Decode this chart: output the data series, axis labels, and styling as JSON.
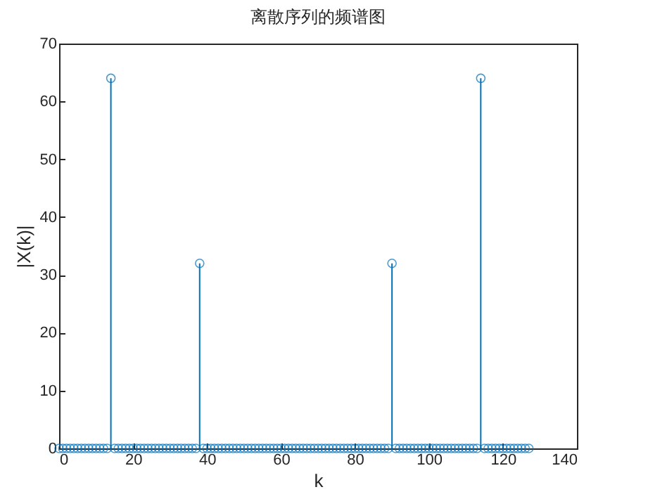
{
  "chart_data": {
    "type": "lollipop",
    "title": "离散序列的频谱图",
    "xlabel": "k",
    "ylabel": "|X(k)|",
    "x": [
      0,
      1,
      2,
      3,
      4,
      5,
      6,
      7,
      8,
      9,
      10,
      11,
      12,
      13,
      14,
      15,
      16,
      17,
      18,
      19,
      20,
      21,
      22,
      23,
      24,
      25,
      26,
      27,
      28,
      29,
      30,
      31,
      32,
      33,
      34,
      35,
      36,
      37,
      38,
      39,
      40,
      41,
      42,
      43,
      44,
      45,
      46,
      47,
      48,
      49,
      50,
      51,
      52,
      53,
      54,
      55,
      56,
      57,
      58,
      59,
      60,
      61,
      62,
      63,
      64,
      65,
      66,
      67,
      68,
      69,
      70,
      71,
      72,
      73,
      74,
      75,
      76,
      77,
      78,
      79,
      80,
      81,
      82,
      83,
      84,
      85,
      86,
      87,
      88,
      89,
      90,
      91,
      92,
      93,
      94,
      95,
      96,
      97,
      98,
      99,
      100,
      101,
      102,
      103,
      104,
      105,
      106,
      107,
      108,
      109,
      110,
      111,
      112,
      113,
      114,
      115,
      116,
      117,
      118,
      119,
      120,
      121,
      122,
      123,
      124,
      125,
      126,
      127
    ],
    "series": [
      {
        "color": "#0072bd",
        "values": [
          0,
          0,
          0,
          0,
          0,
          0,
          0,
          0,
          0,
          0,
          0,
          0,
          0,
          0,
          64,
          0,
          0,
          0,
          0,
          0,
          0,
          0,
          0,
          0,
          0,
          0,
          0,
          0,
          0,
          0,
          0,
          0,
          0,
          0,
          0,
          0,
          0,
          0,
          32,
          0,
          0,
          0,
          0,
          0,
          0,
          0,
          0,
          0,
          0,
          0,
          0,
          0,
          0,
          0,
          0,
          0,
          0,
          0,
          0,
          0,
          0,
          0,
          0,
          0,
          0,
          0,
          0,
          0,
          0,
          0,
          0,
          0,
          0,
          0,
          0,
          0,
          0,
          0,
          0,
          0,
          0,
          0,
          0,
          0,
          0,
          0,
          0,
          0,
          0,
          0,
          32,
          0,
          0,
          0,
          0,
          0,
          0,
          0,
          0,
          0,
          0,
          0,
          0,
          0,
          0,
          0,
          0,
          0,
          0,
          0,
          0,
          0,
          0,
          0,
          64,
          0,
          0,
          0,
          0,
          0,
          0,
          0,
          0,
          0,
          0,
          0,
          0,
          0
        ]
      }
    ],
    "xlim": [
      0,
      140
    ],
    "xticks": [
      0,
      20,
      40,
      60,
      80,
      100,
      120,
      140
    ],
    "ylim": [
      0,
      70
    ],
    "yticks": [
      0,
      10,
      20,
      30,
      40,
      50,
      60,
      70
    ],
    "grid": false,
    "marker": "circle",
    "legend": false
  }
}
